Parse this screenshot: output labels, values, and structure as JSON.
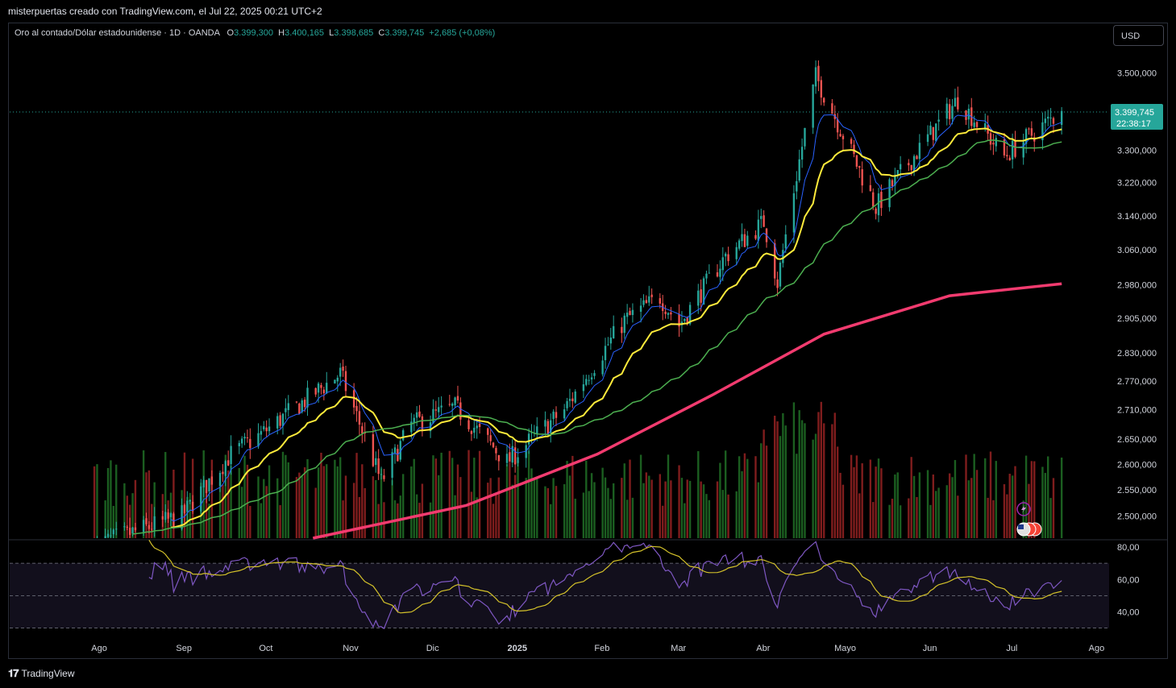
{
  "header": {
    "caption": "misterpuertas creado con TradingView.com, el Jul 22, 2025 00:21 UTC+2"
  },
  "legend": {
    "symbol": "Oro al contado/Dólar estadounidense · 1D · OANDA",
    "o_label": "O",
    "o": "3.399,300",
    "h_label": "H",
    "h": "3.400,165",
    "l_label": "L",
    "l": "3.398,685",
    "c_label": "C",
    "c": "3.399,745",
    "change": "+2,685 (+0,08%)"
  },
  "currency_button": "USD",
  "last_price": {
    "price": "3.399,745",
    "countdown": "22:38:17"
  },
  "footer": {
    "brand": "TradingView"
  },
  "colors": {
    "up": "#26a69a",
    "down": "#ef5350",
    "ema_fast": "#2962ff",
    "ema_mid": "#ffeb3b",
    "sma_slow": "#4caf50",
    "sma_long": "#f23b6f",
    "rsi": "#7e57c2",
    "rsi_ma": "#d4c22a",
    "vol_up": "#1b5e20",
    "vol_down": "#7f1d1d"
  },
  "chart_data": {
    "type": "candlestick",
    "price_axis": {
      "ticks": [
        "3.500,000",
        "3.300,000",
        "3.220,000",
        "3.140,000",
        "3.060,000",
        "2.980,000",
        "2.905,000",
        "2.830,000",
        "2.770,000",
        "2.710,000",
        "2.650,000",
        "2.600,000",
        "2.550,000",
        "2.500,000"
      ],
      "tick_values": [
        3500,
        3300,
        3220,
        3140,
        3060,
        2980,
        2905,
        2830,
        2770,
        2710,
        2650,
        2600,
        2550,
        2500
      ],
      "scale": "log"
    },
    "time_axis": {
      "ticks": [
        "Ago",
        "Sep",
        "Oct",
        "Nov",
        "Dic",
        "2025",
        "Feb",
        "Mar",
        "Abr",
        "Mayo",
        "Jun",
        "Jul",
        "Ago"
      ],
      "bold": [
        false,
        false,
        false,
        false,
        false,
        true,
        false,
        false,
        false,
        false,
        false,
        false,
        false
      ]
    },
    "rsi_axis": {
      "ticks": [
        "80,00",
        "60,00",
        "40,00"
      ],
      "tick_values": [
        80,
        60,
        40
      ],
      "band": [
        30,
        70
      ]
    },
    "key_points": [
      {
        "x": "2024-08-01",
        "close": 2445
      },
      {
        "x": "2024-09-02",
        "close": 2500
      },
      {
        "x": "2024-09-20",
        "close": 2620
      },
      {
        "x": "2024-10-01",
        "close": 2660
      },
      {
        "x": "2024-10-30",
        "close": 2785
      },
      {
        "x": "2024-11-14",
        "close": 2565
      },
      {
        "x": "2024-11-25",
        "close": 2680
      },
      {
        "x": "2024-12-11",
        "close": 2715
      },
      {
        "x": "2024-12-30",
        "close": 2605
      },
      {
        "x": "2025-01-20",
        "close": 2710
      },
      {
        "x": "2025-02-11",
        "close": 2900
      },
      {
        "x": "2025-02-24",
        "close": 2952
      },
      {
        "x": "2025-03-03",
        "close": 2890
      },
      {
        "x": "2025-03-20",
        "close": 3045
      },
      {
        "x": "2025-04-03",
        "close": 3125
      },
      {
        "x": "2025-04-08",
        "close": 2985
      },
      {
        "x": "2025-04-22",
        "close": 3490
      },
      {
        "x": "2025-05-14",
        "close": 3160
      },
      {
        "x": "2025-06-13",
        "close": 3430
      },
      {
        "x": "2025-06-30",
        "close": 3285
      },
      {
        "x": "2025-07-21",
        "close": 3399.745
      }
    ],
    "indicators": [
      "EMA fast",
      "EMA mid",
      "SMA slow",
      "SMA long",
      "Volume",
      "RSI",
      "RSI MA"
    ]
  }
}
